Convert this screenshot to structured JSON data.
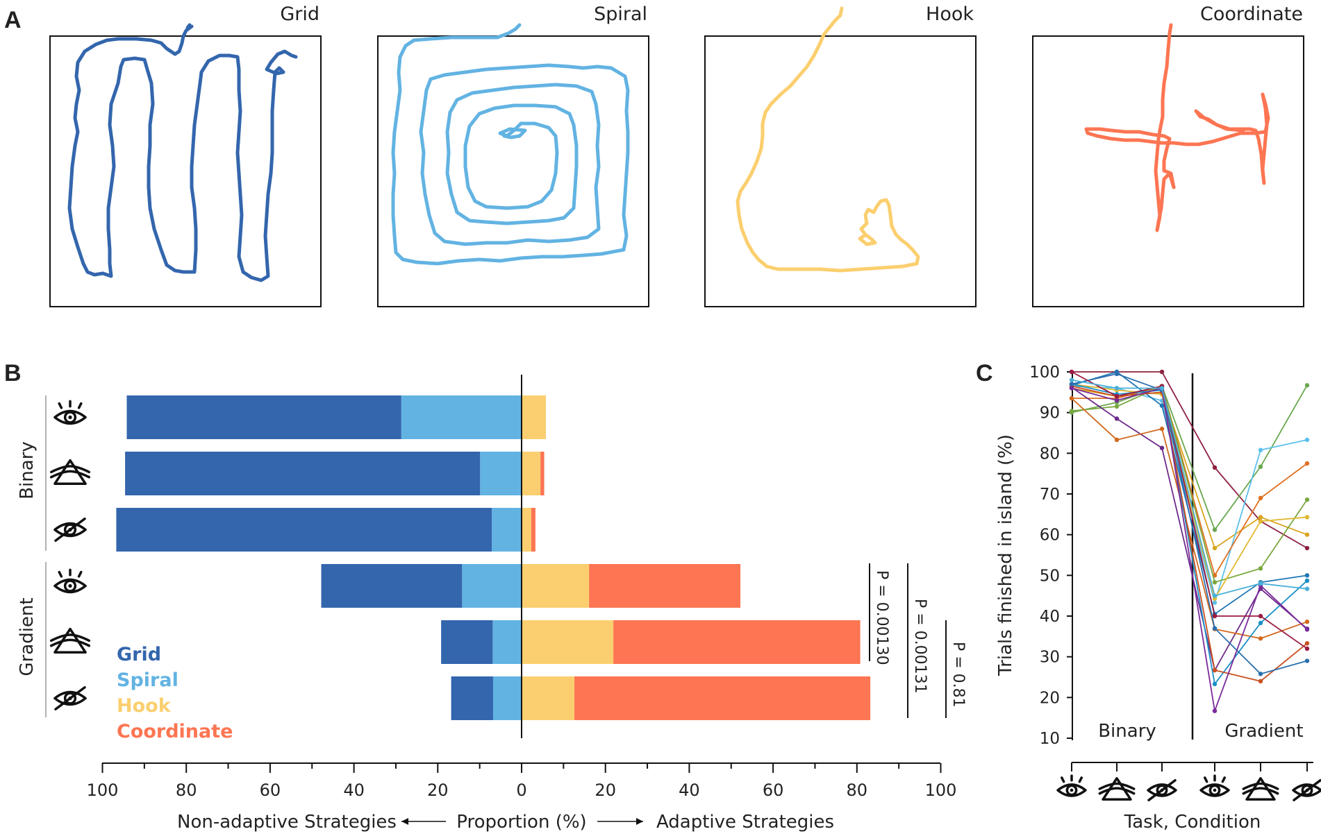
{
  "panel_letters": {
    "a": "A",
    "b": "B",
    "c": "C"
  },
  "colors": {
    "grid": "#3366ad",
    "spiral": "#62b3e2",
    "hook": "#fbcf6f",
    "coordinate": "#fd7552",
    "axis": "#111111"
  },
  "panel_a": {
    "titles": [
      "Grid",
      "Spiral",
      "Hook",
      "Coordinate"
    ]
  },
  "chart_data": [
    {
      "type": "bar",
      "orientation": "horizontal-diverging",
      "panel": "B",
      "xlabel_left": "Non-adaptive Strategies",
      "xlabel_center": "Proportion (%)",
      "xlabel_right": "Adaptive Strategies",
      "x_ticks_left": [
        100,
        80,
        60,
        40,
        20,
        0
      ],
      "x_ticks_right": [
        20,
        40,
        60,
        80,
        100
      ],
      "xlim": [
        -100,
        100
      ],
      "groups": [
        "Binary",
        "Gradient"
      ],
      "conditions": [
        "eye",
        "triangle",
        "eye-slash"
      ],
      "legend": [
        "Grid",
        "Spiral",
        "Hook",
        "Coordinate"
      ],
      "rows": [
        {
          "group": "Binary",
          "condition": "eye",
          "grid": 65.5,
          "spiral": 28.7,
          "hook": 5.8,
          "coordinate": 0
        },
        {
          "group": "Binary",
          "condition": "triangle",
          "grid": 84.7,
          "spiral": 9.9,
          "hook": 4.5,
          "coordinate": 0.9
        },
        {
          "group": "Binary",
          "condition": "eye-slash",
          "grid": 89.6,
          "spiral": 7.1,
          "hook": 2.3,
          "coordinate": 1.0
        },
        {
          "group": "Gradient",
          "condition": "eye",
          "grid": 33.6,
          "spiral": 14.2,
          "hook": 16.1,
          "coordinate": 36.1
        },
        {
          "group": "Gradient",
          "condition": "triangle",
          "grid": 12.3,
          "spiral": 6.9,
          "hook": 21.9,
          "coordinate": 58.9
        },
        {
          "group": "Gradient",
          "condition": "eye-slash",
          "grid": 10.0,
          "spiral": 6.8,
          "hook": 12.6,
          "coordinate": 70.6
        }
      ],
      "significance": [
        "P = 0.00130",
        "P = 0.00131",
        "P = 0.81"
      ]
    },
    {
      "type": "line",
      "panel": "C",
      "ylabel": "Trials finished in island (%)",
      "xlabel": "Task, Condition",
      "ylim": [
        10,
        100
      ],
      "y_ticks": [
        10,
        20,
        30,
        40,
        50,
        60,
        70,
        80,
        90,
        100
      ],
      "x_categories": [
        "Binary eye",
        "Binary triangle",
        "Binary eye-slash",
        "Gradient eye",
        "Gradient triangle",
        "Gradient eye-slash"
      ],
      "region_labels": [
        "Binary",
        "Gradient"
      ],
      "series": [
        {
          "color": "#8e1f3f",
          "values": [
            100,
            100,
            100,
            76.5,
            63.3,
            56.7
          ]
        },
        {
          "color": "#6aa84f",
          "values": [
            90.0,
            92.5,
            96.5,
            61.2,
            76.7,
            96.7
          ]
        },
        {
          "color": "#d9a520",
          "values": [
            96.0,
            94.0,
            95.0,
            56.7,
            64.3,
            60.0
          ]
        },
        {
          "color": "#5bc0eb",
          "values": [
            96.5,
            96.0,
            92.9,
            43.3,
            80.8,
            83.3
          ]
        },
        {
          "color": "#e07020",
          "values": [
            93.5,
            93.5,
            96.5,
            50.0,
            69.0,
            77.5
          ]
        },
        {
          "color": "#7aa83e",
          "values": [
            90.4,
            91.5,
            96.5,
            48.3,
            51.7,
            68.6
          ]
        },
        {
          "color": "#e0b830",
          "values": [
            97.0,
            95.5,
            94.5,
            44.3,
            63.3,
            64.3
          ]
        },
        {
          "color": "#1f77b4",
          "values": [
            96.7,
            100,
            91.7,
            40.5,
            48.3,
            50.0
          ]
        },
        {
          "color": "#6b2a8a",
          "values": [
            96.2,
            88.5,
            81.3,
            26.7,
            46.7,
            36.9
          ]
        },
        {
          "color": "#d2691e",
          "values": [
            93.5,
            83.3,
            86.0,
            36.8,
            34.5,
            38.6
          ]
        },
        {
          "color": "#1a8fc7",
          "values": [
            97.0,
            94.5,
            95.5,
            23.3,
            38.3,
            48.7
          ]
        },
        {
          "color": "#c85020",
          "values": [
            96.5,
            94.0,
            95.0,
            26.7,
            24.0,
            33.3
          ]
        },
        {
          "color": "#2a6fb0",
          "values": [
            97.0,
            99.5,
            95.5,
            37.0,
            25.8,
            29.0
          ]
        },
        {
          "color": "#7a2a9a",
          "values": [
            96.0,
            93.0,
            96.0,
            16.7,
            47.5,
            36.7
          ]
        },
        {
          "color": "#9a1a40",
          "values": [
            100,
            94.0,
            96.5,
            40.0,
            40.0,
            32.0
          ]
        },
        {
          "color": "#4ab0d8",
          "values": [
            98.0,
            96.0,
            96.0,
            45.0,
            48.0,
            46.7
          ]
        }
      ]
    }
  ]
}
